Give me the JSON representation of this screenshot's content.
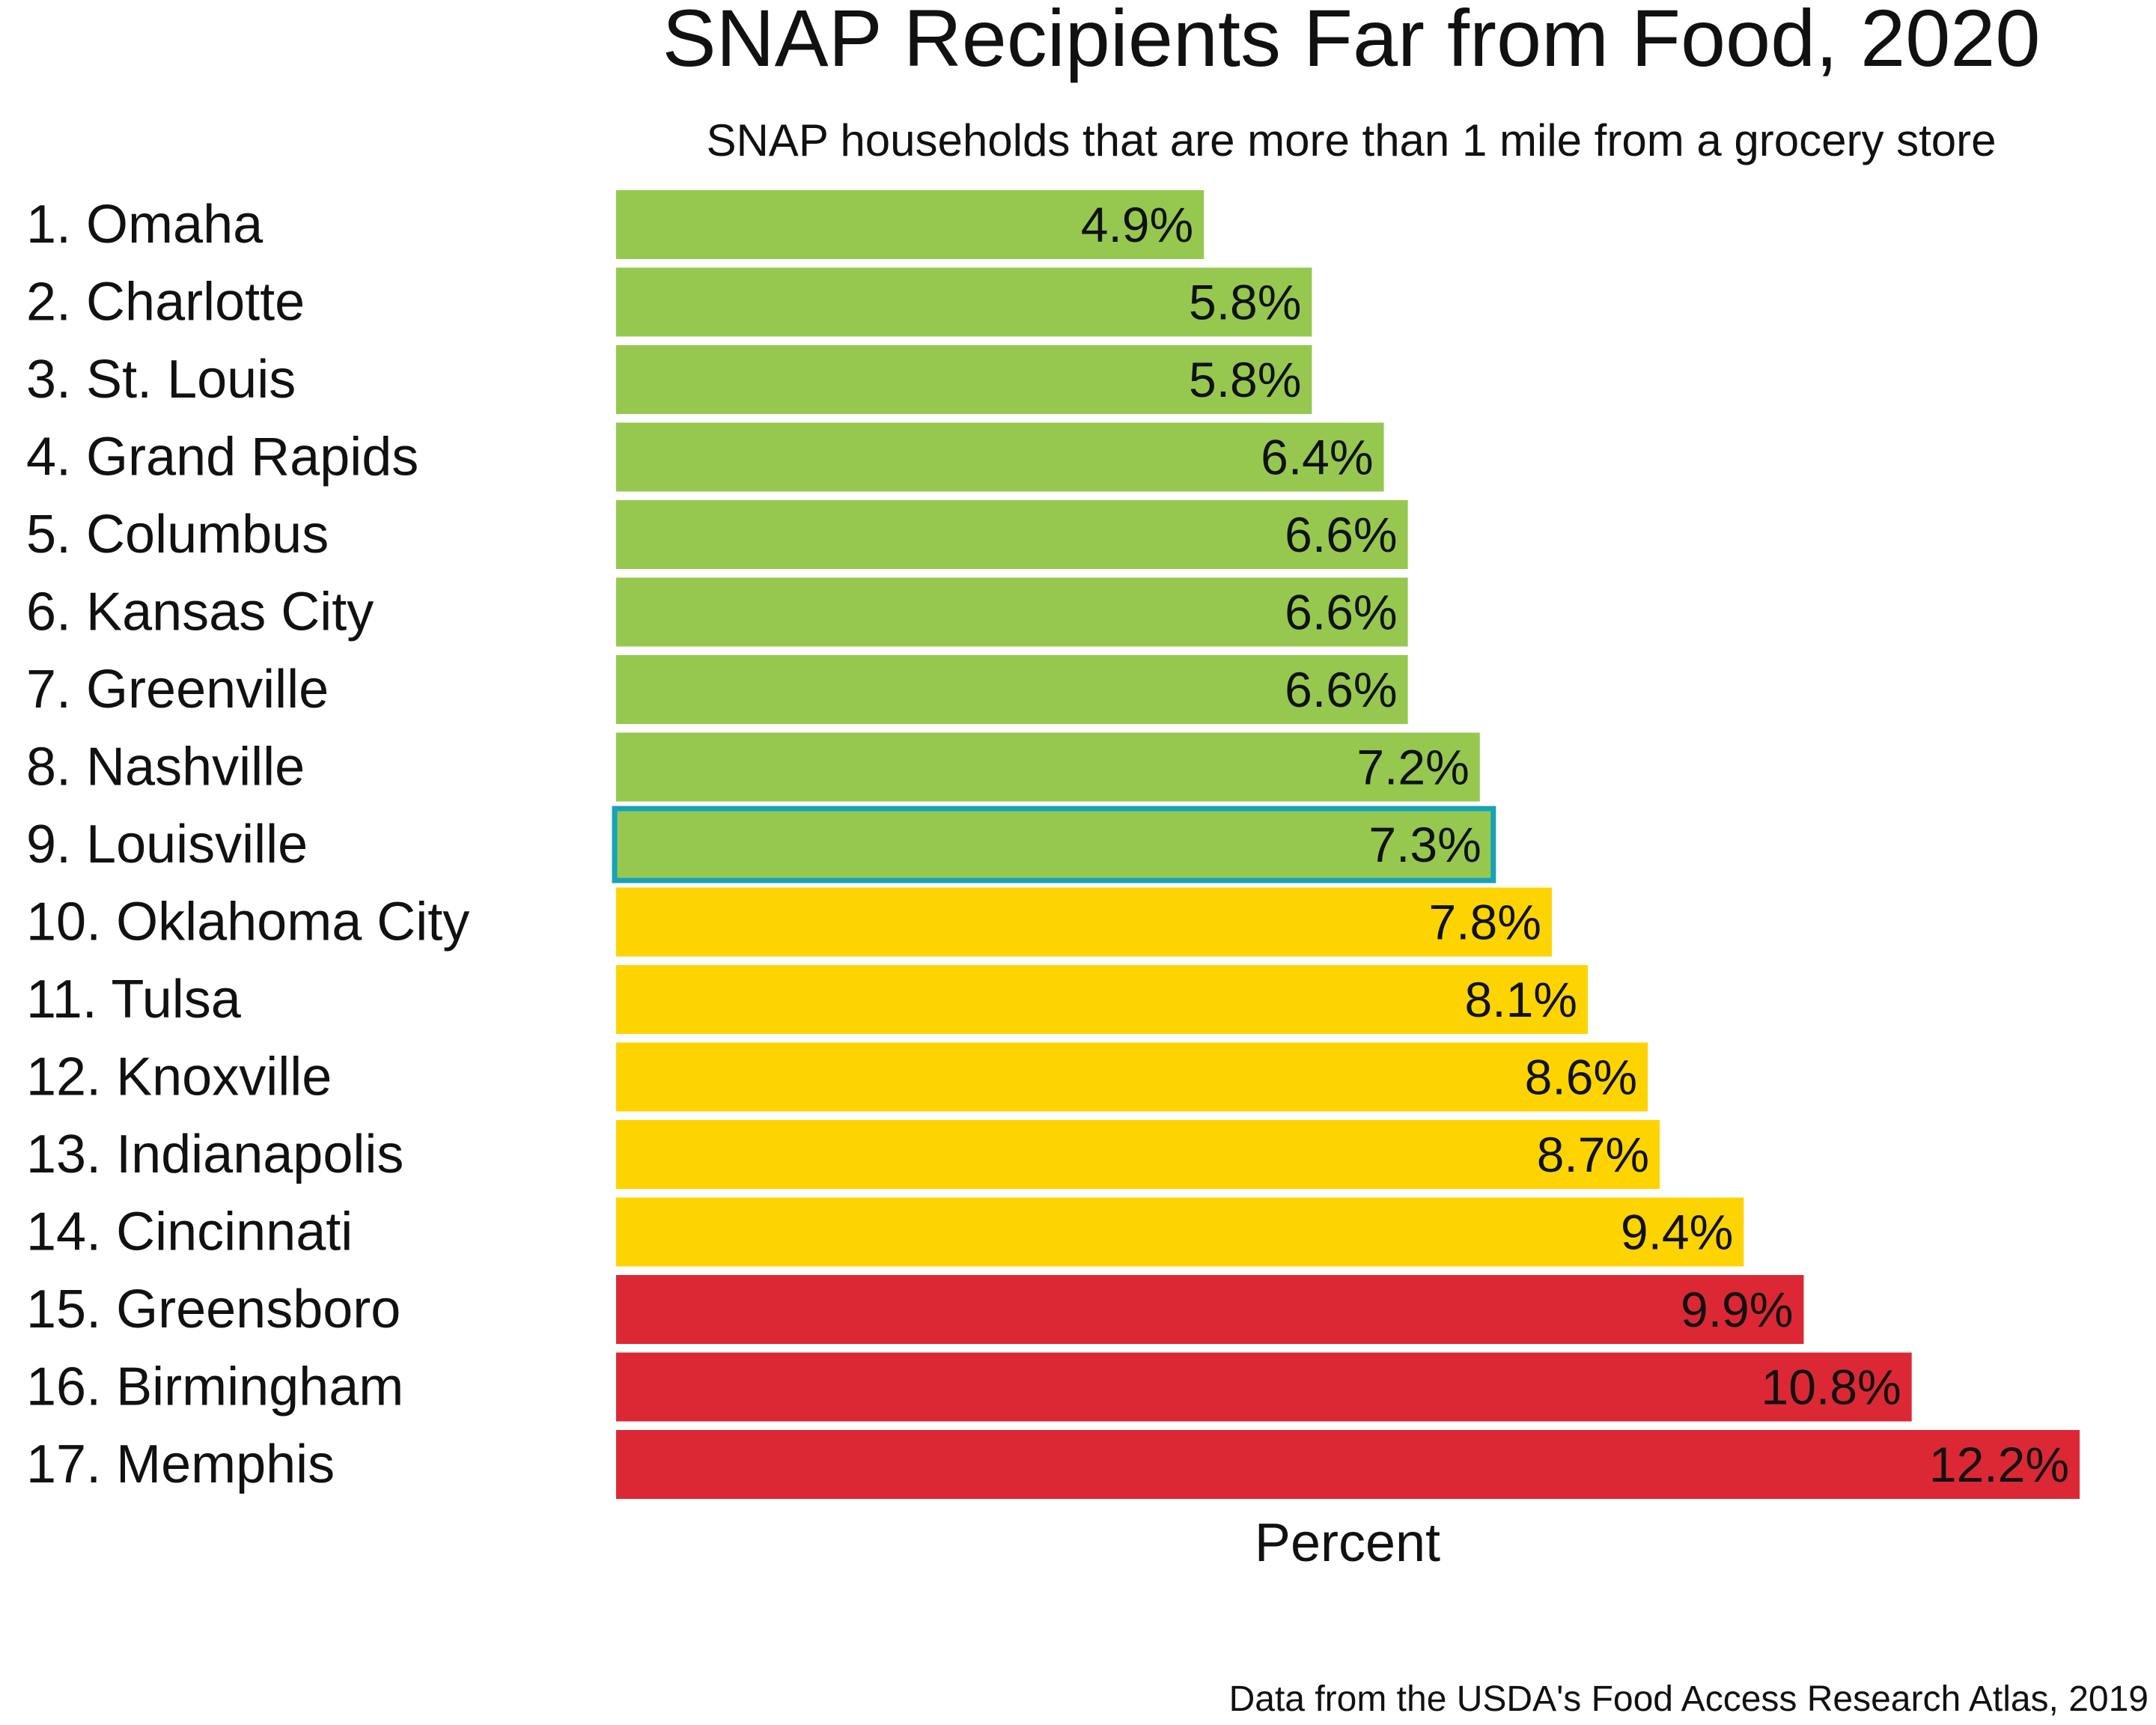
{
  "chart_data": {
    "type": "bar",
    "orientation": "horizontal",
    "title": "SNAP Recipients Far from Food, 2020",
    "subtitle": "SNAP households that are more than 1 mile from a grocery store",
    "xlabel": "Percent",
    "ylabel": "",
    "xlim": [
      0,
      12.2
    ],
    "grid": false,
    "legend": "none",
    "source": "Data from the USDA's Food Access Research Atlas, 2019",
    "highlight": "9. Louisville",
    "highlight_color": "#17a2b8",
    "colors": {
      "green": "#96c850",
      "yellow": "#fdd400",
      "red": "#dc2834"
    },
    "categories": [
      "1. Omaha",
      "2. Charlotte",
      "3. St. Louis",
      "4. Grand Rapids",
      "5. Columbus",
      "6. Kansas City",
      "7. Greenville",
      "8. Nashville",
      "9. Louisville",
      "10. Oklahoma City",
      "11. Tulsa",
      "12. Knoxville",
      "13. Indianapolis",
      "14. Cincinnati",
      "15. Greensboro",
      "16. Birmingham",
      "17. Memphis"
    ],
    "values": [
      4.9,
      5.8,
      5.8,
      6.4,
      6.6,
      6.6,
      6.6,
      7.2,
      7.3,
      7.8,
      8.1,
      8.6,
      8.7,
      9.4,
      9.9,
      10.8,
      12.2
    ],
    "value_labels": [
      "4.9%",
      "5.8%",
      "5.8%",
      "6.4%",
      "6.6%",
      "6.6%",
      "6.6%",
      "7.2%",
      "7.3%",
      "7.8%",
      "8.1%",
      "8.6%",
      "8.7%",
      "9.4%",
      "9.9%",
      "10.8%",
      "12.2%"
    ],
    "bar_colors": [
      "green",
      "green",
      "green",
      "green",
      "green",
      "green",
      "green",
      "green",
      "green",
      "yellow",
      "yellow",
      "yellow",
      "yellow",
      "yellow",
      "red",
      "red",
      "red"
    ]
  }
}
